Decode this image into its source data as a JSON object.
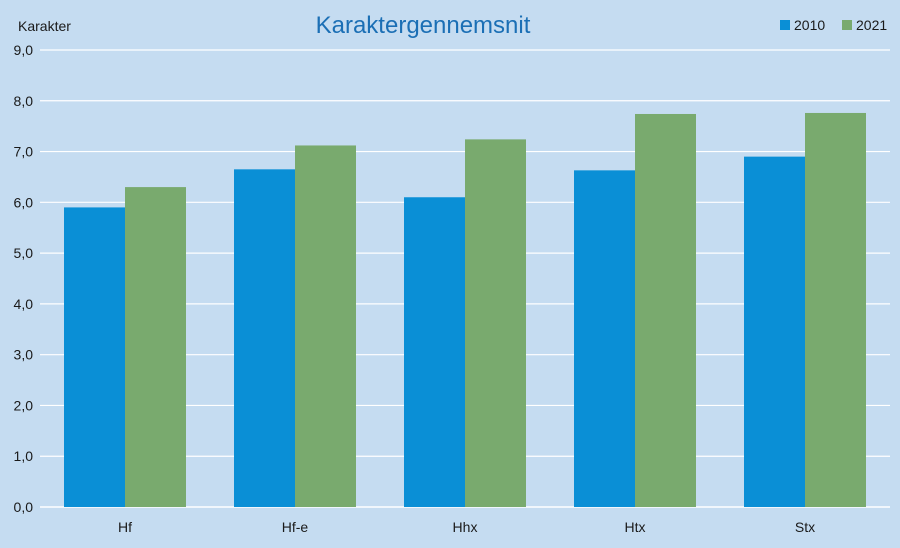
{
  "chart_data": {
    "type": "bar",
    "title": "Karaktergennemsnit",
    "ylabel": "Karakter",
    "xlabel": "",
    "categories": [
      "Hf",
      "Hf-e",
      "Hhx",
      "Htx",
      "Stx"
    ],
    "series": [
      {
        "name": "2010",
        "color": "#0a8fd6",
        "values": [
          5.9,
          6.65,
          6.1,
          6.63,
          6.9
        ]
      },
      {
        "name": "2021",
        "color": "#79aa6e",
        "values": [
          6.3,
          7.12,
          7.24,
          7.74,
          7.76
        ]
      }
    ],
    "ylim": [
      0,
      9
    ],
    "yticks": [
      "0,0",
      "1,0",
      "2,0",
      "3,0",
      "4,0",
      "5,0",
      "6,0",
      "7,0",
      "8,0",
      "9,0"
    ],
    "grid": true,
    "legend_position": "top-right",
    "colors": {
      "background": "#c5dcf1",
      "gridline": "#ffffff",
      "title": "#1b6fb5"
    }
  }
}
